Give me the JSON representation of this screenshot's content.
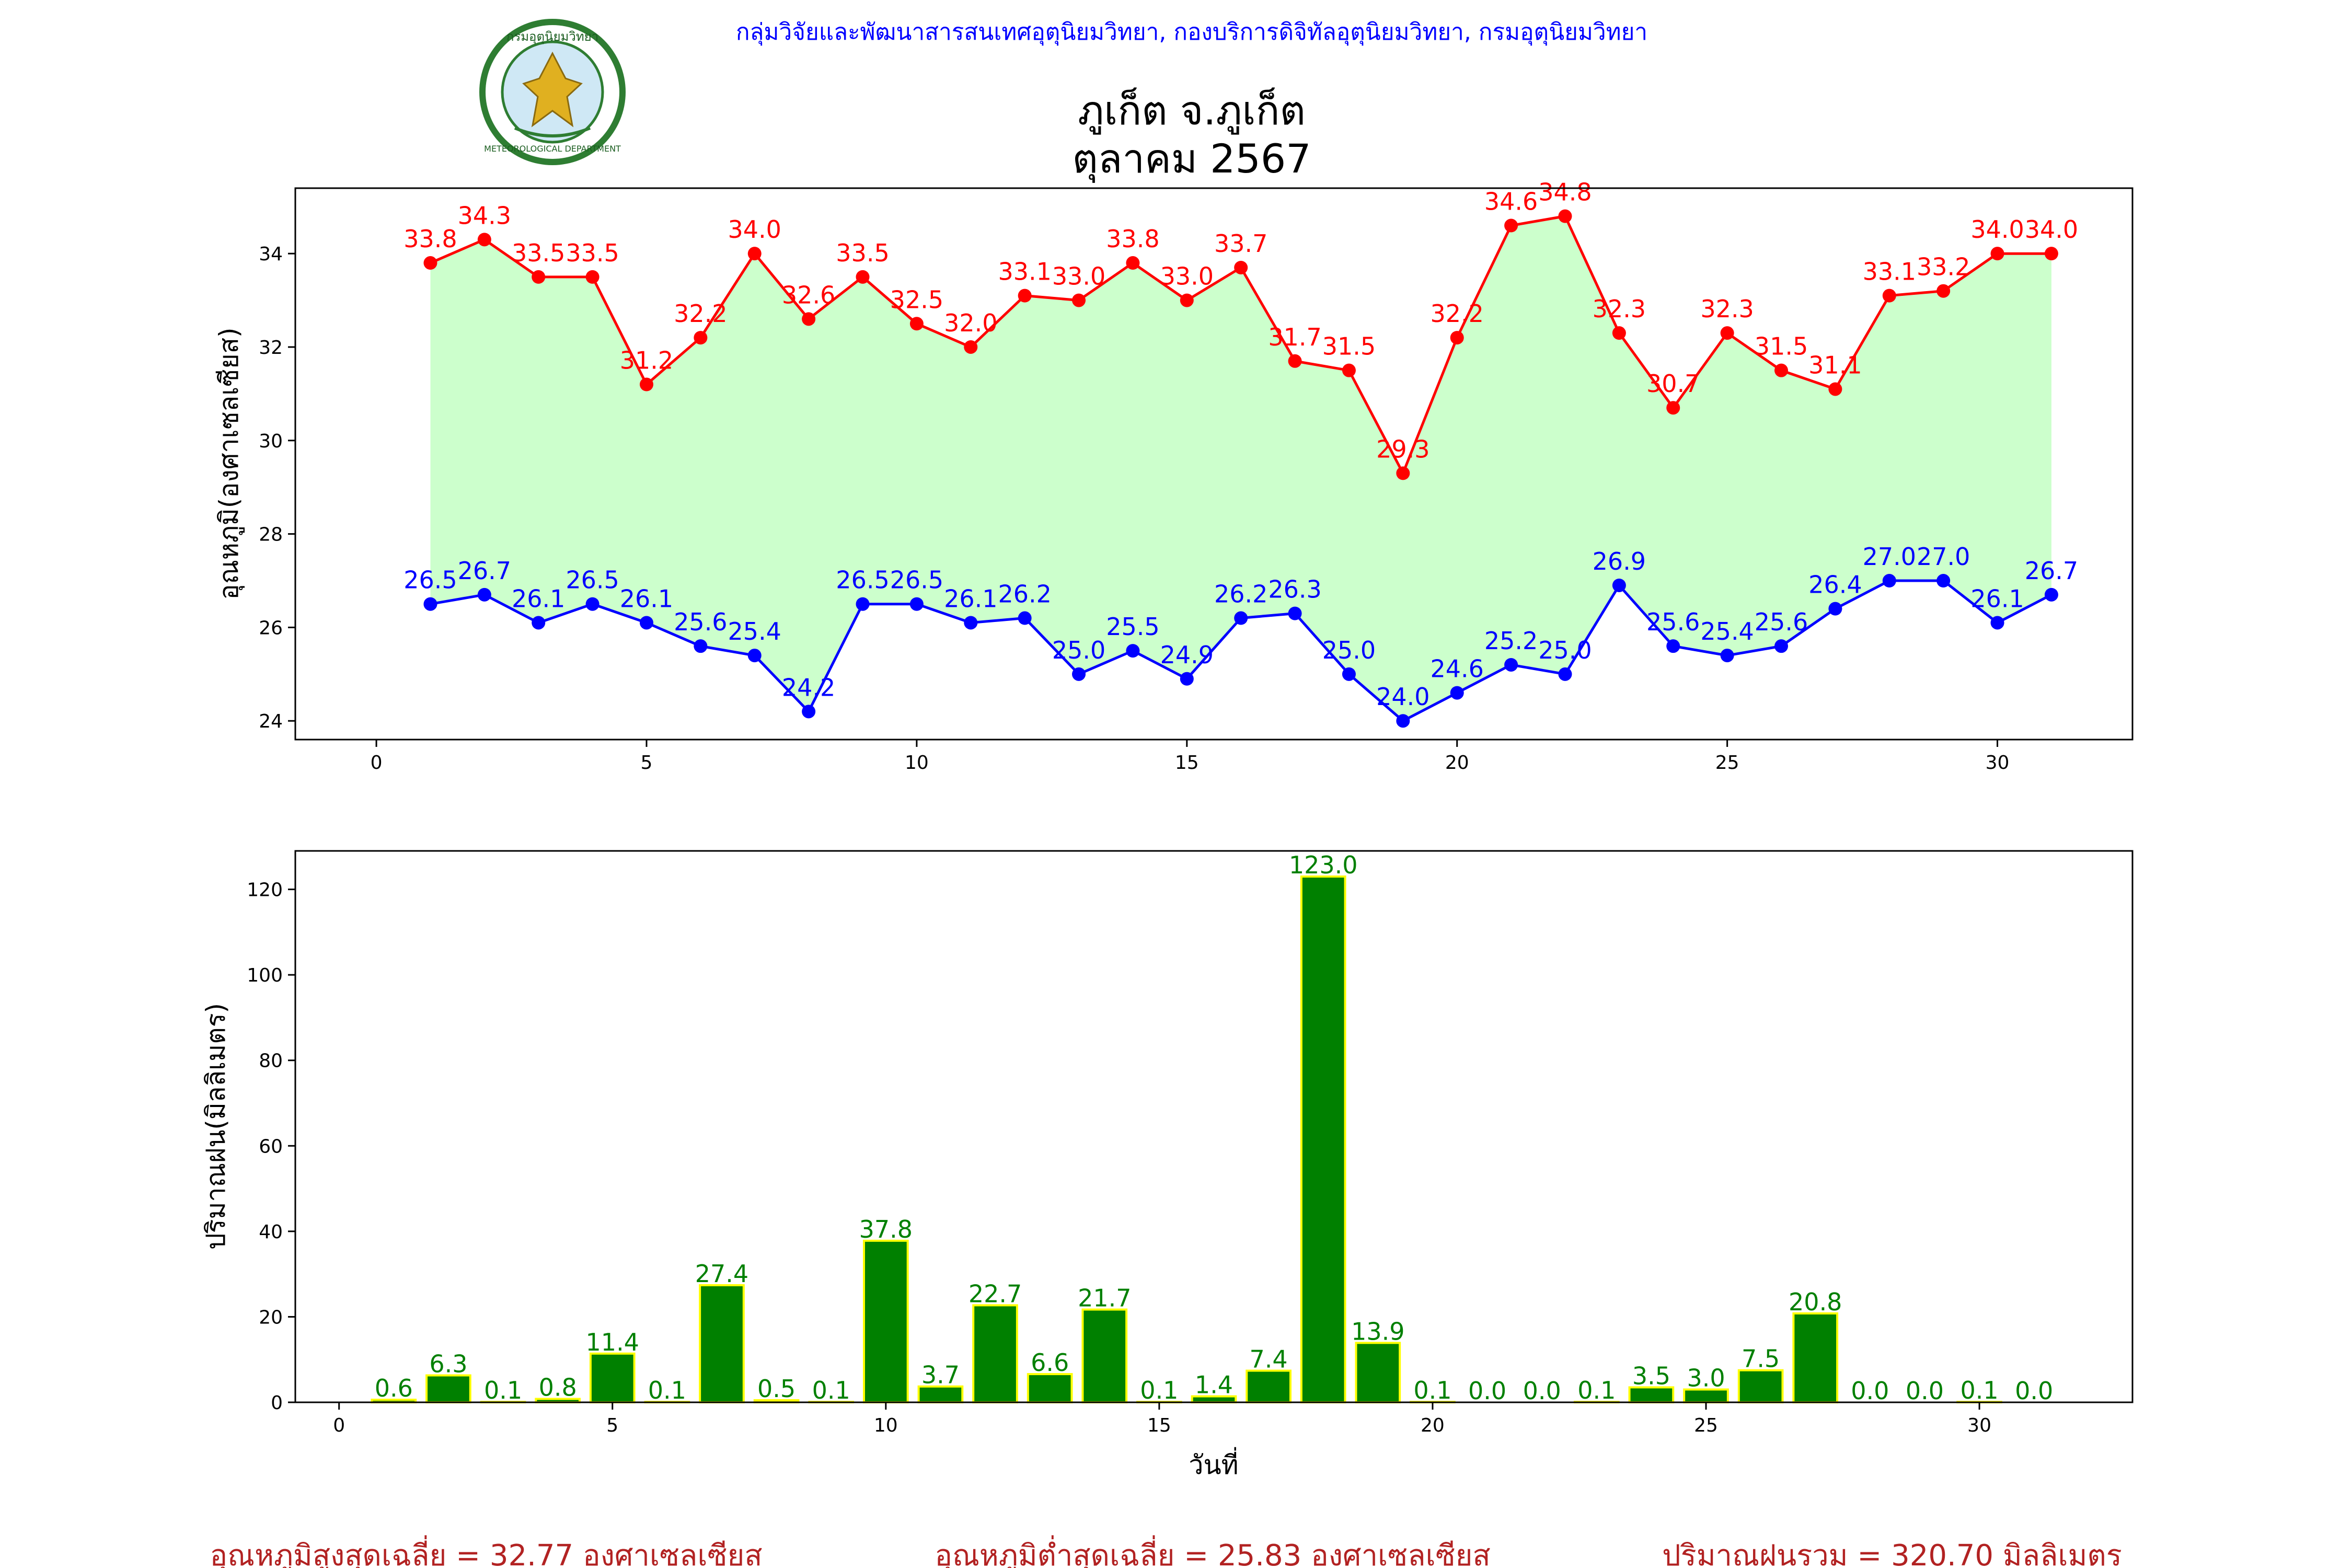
{
  "header": {
    "credit": "กลุ่มวิจัยและพัฒนาสารสนเทศอุตุนิยมวิทยา, กองบริการดิจิทัลอุตุนิยมวิทยา, กรมอุตุนิยมวิทยา",
    "title_line1": "ภูเก็ต จ.ภูเก็ต",
    "title_line2": "ตุลาคม 2567",
    "logo_text_top": "กรมอุตุนิยมวิทยา",
    "logo_text_bottom": "METEOROLOGICAL DEPARTMENT"
  },
  "footer": {
    "avg_max": "อุณหภูมิสูงสุดเฉลี่ย = 32.77 องศาเซลเซียส",
    "avg_min": "อุณหภูมิต่ำสุดเฉลี่ย = 25.83 องศาเซลเซียส",
    "total_rain": "ปริมาณฝนรวม = 320.70 มิลลิเมตร"
  },
  "colors": {
    "max": "#ff0000",
    "min": "#0000ff",
    "fill": "#ccffcc",
    "bar": "#008000",
    "bar_edge": "#ffff00",
    "credit": "#0000ff",
    "footer": "#b22222"
  },
  "chart_data": [
    {
      "type": "line",
      "ylabel": "อุณหภูมิ(องศาเซลเซียส)",
      "xlim": [
        -1.5,
        32.5
      ],
      "ylim": [
        23.6,
        35.4
      ],
      "xticks": [
        0,
        5,
        10,
        15,
        20,
        25,
        30
      ],
      "yticks": [
        24,
        26,
        28,
        30,
        32,
        34
      ],
      "grid": false,
      "x": [
        1,
        2,
        3,
        4,
        5,
        6,
        7,
        8,
        9,
        10,
        11,
        12,
        13,
        14,
        15,
        16,
        17,
        18,
        19,
        20,
        21,
        22,
        23,
        24,
        25,
        26,
        27,
        28,
        29,
        30,
        31
      ],
      "series": [
        {
          "key": "max",
          "values": [
            33.8,
            34.3,
            33.5,
            33.5,
            31.2,
            32.2,
            34.0,
            32.6,
            33.5,
            32.5,
            32.0,
            33.1,
            33.0,
            33.8,
            33.0,
            33.7,
            31.7,
            31.5,
            29.3,
            32.2,
            34.6,
            34.8,
            32.3,
            30.7,
            32.3,
            31.5,
            31.1,
            33.1,
            33.2,
            34.0,
            34.0
          ]
        },
        {
          "key": "min",
          "values": [
            26.5,
            26.7,
            26.1,
            26.5,
            26.1,
            25.6,
            25.4,
            24.2,
            26.5,
            26.5,
            26.1,
            26.2,
            25.0,
            25.5,
            24.9,
            26.2,
            26.3,
            25.0,
            24.0,
            24.6,
            25.2,
            25.0,
            26.9,
            25.6,
            25.4,
            25.6,
            26.4,
            27.0,
            27.0,
            26.1,
            26.7
          ]
        }
      ]
    },
    {
      "type": "bar",
      "ylabel": "ปริมาณฝน(มิลลิเมตร)",
      "xlabel": "วันที่",
      "xlim": [
        -0.8,
        32.8
      ],
      "ylim": [
        0,
        129
      ],
      "xticks": [
        0,
        5,
        10,
        15,
        20,
        25,
        30
      ],
      "yticks": [
        0,
        20,
        40,
        60,
        80,
        100,
        120
      ],
      "grid": false,
      "x": [
        1,
        2,
        3,
        4,
        5,
        6,
        7,
        8,
        9,
        10,
        11,
        12,
        13,
        14,
        15,
        16,
        17,
        18,
        19,
        20,
        21,
        22,
        23,
        24,
        25,
        26,
        27,
        28,
        29,
        30,
        31
      ],
      "values": [
        0.6,
        6.3,
        0.1,
        0.8,
        11.4,
        0.1,
        27.4,
        0.5,
        0.1,
        37.8,
        3.7,
        22.7,
        6.6,
        21.7,
        0.1,
        1.4,
        7.4,
        123.0,
        13.9,
        0.1,
        0.0,
        0.0,
        0.1,
        3.5,
        3.0,
        7.5,
        20.8,
        0.0,
        0.0,
        0.1,
        0.0
      ]
    }
  ]
}
